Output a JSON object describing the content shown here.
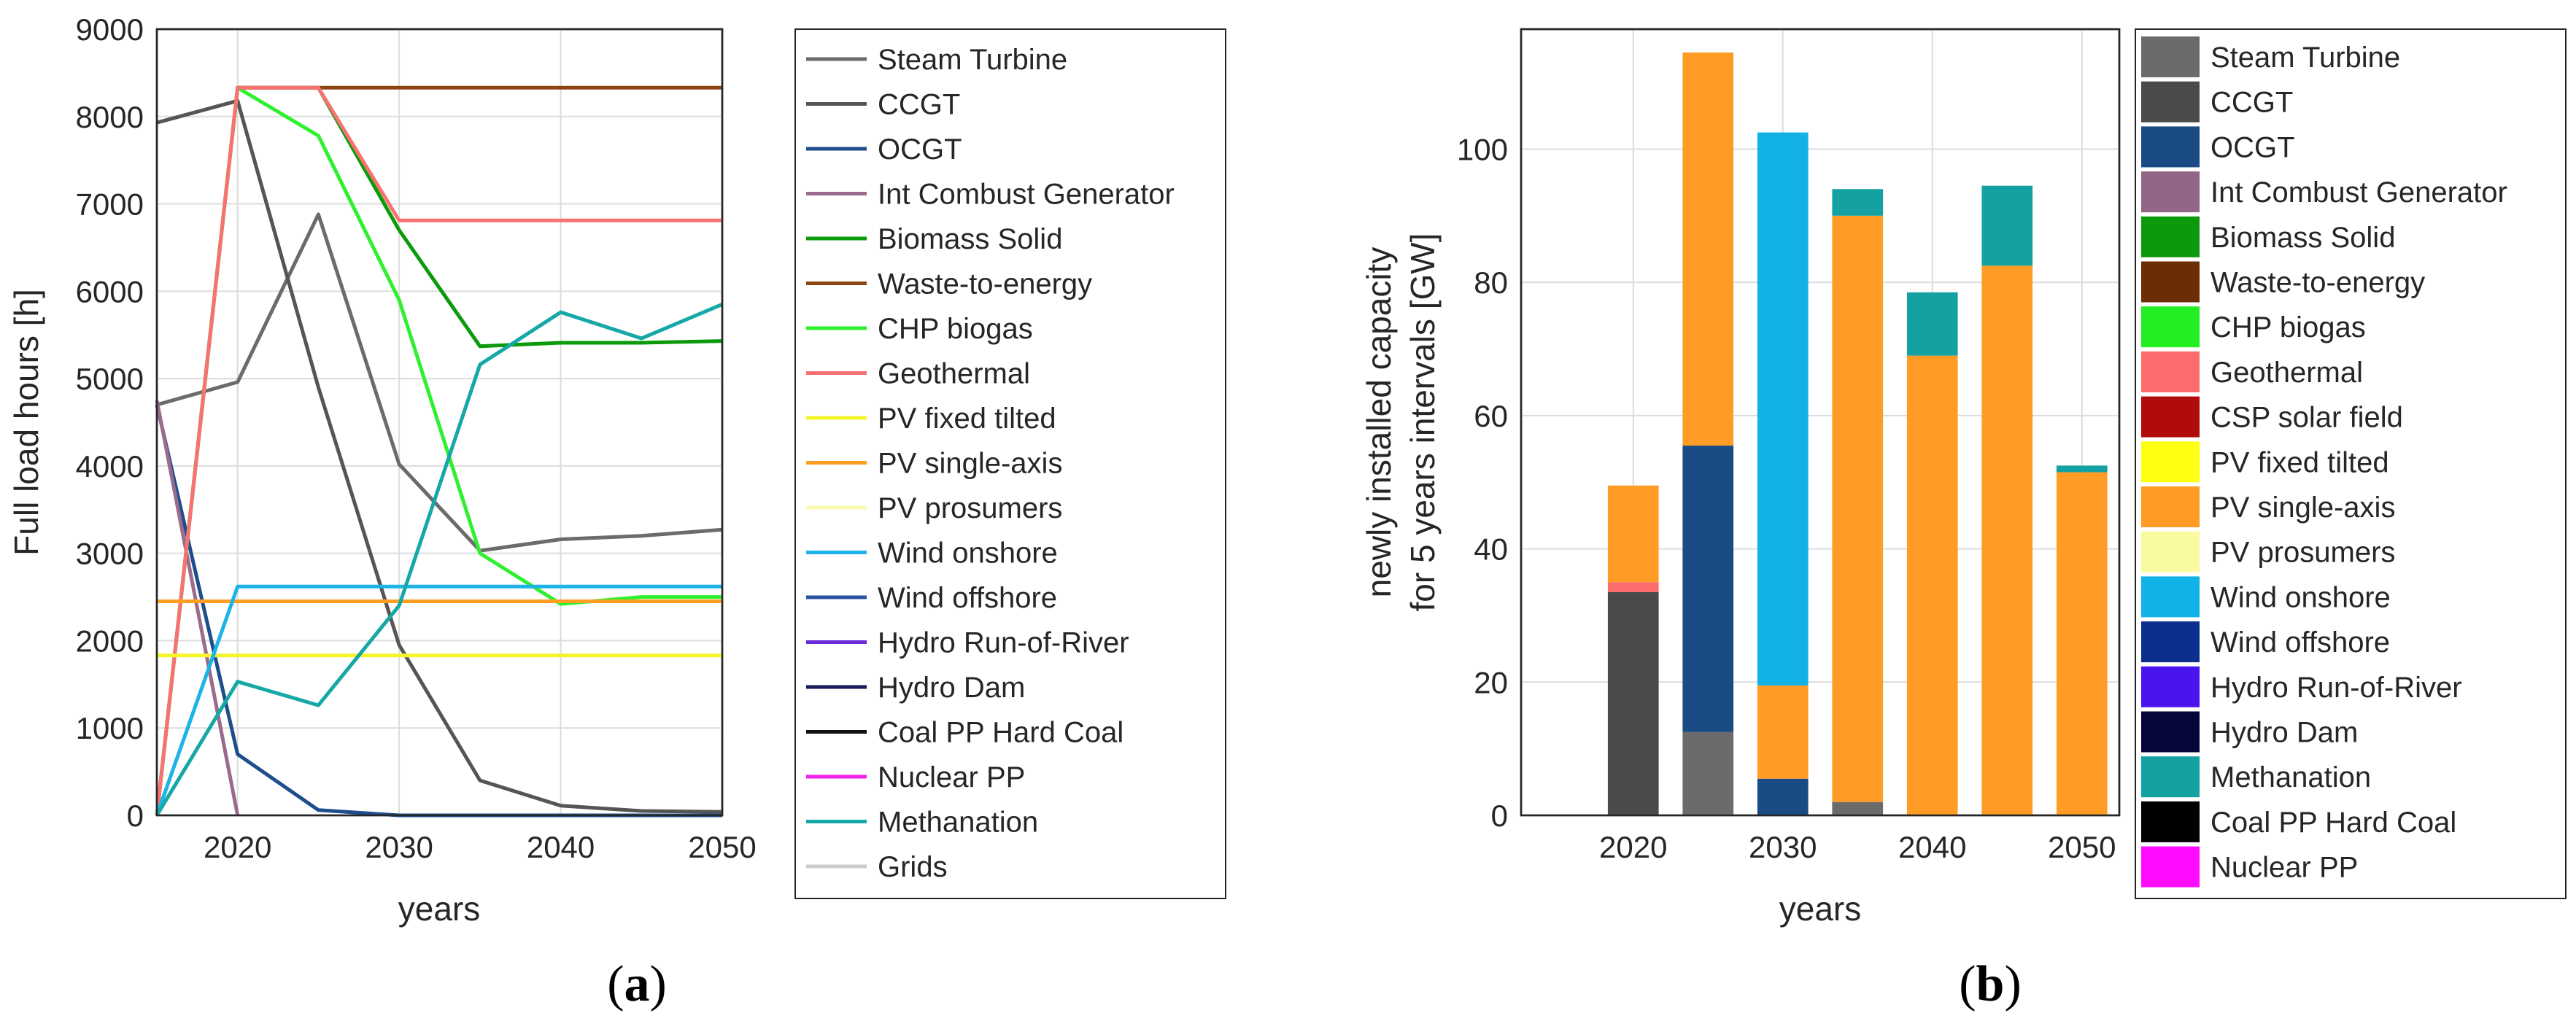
{
  "chart_data": [
    {
      "type": "line",
      "panel_label_prefix": "(",
      "panel_label_letter": "a",
      "panel_label_suffix": ")",
      "xlabel": "years",
      "ylabel": "Full load hours [h]",
      "xlim": [
        2015,
        2050
      ],
      "ylim": [
        0,
        9000
      ],
      "xticks": [
        2020,
        2030,
        2040,
        2050
      ],
      "yticks": [
        0,
        1000,
        2000,
        3000,
        4000,
        5000,
        6000,
        7000,
        8000,
        9000
      ],
      "x": [
        2015,
        2020,
        2025,
        2030,
        2035,
        2040,
        2045,
        2050
      ],
      "series": [
        {
          "name": "Steam Turbine",
          "color": "#6b6b6b",
          "values": [
            4700,
            4960,
            6880,
            4020,
            3030,
            3160,
            3200,
            3270
          ]
        },
        {
          "name": "CCGT",
          "color": "#555555",
          "values": [
            7930,
            8180,
            4900,
            1950,
            400,
            110,
            50,
            40
          ]
        },
        {
          "name": "OCGT",
          "color": "#1f4e8c",
          "values": [
            4700,
            700,
            60,
            0,
            0,
            0,
            0,
            0
          ]
        },
        {
          "name": "Int Combust Generator",
          "color": "#9b6b8b",
          "values": [
            4750,
            0,
            null,
            null,
            null,
            null,
            null,
            null
          ]
        },
        {
          "name": "Biomass Solid",
          "color": "#0a9a0a",
          "values": [
            0,
            8330,
            8330,
            6700,
            5370,
            5410,
            5410,
            5430
          ]
        },
        {
          "name": "Waste-to-energy",
          "color": "#8b4513",
          "values": [
            0,
            8330,
            8330,
            8330,
            8330,
            8330,
            8330,
            8330
          ]
        },
        {
          "name": "CHP biogas",
          "color": "#2ff02f",
          "values": [
            0,
            8330,
            7780,
            5900,
            3000,
            2420,
            2500,
            2500
          ]
        },
        {
          "name": "Geothermal",
          "color": "#f87272",
          "values": [
            0,
            8330,
            8330,
            6810,
            6810,
            6810,
            6810,
            6810
          ]
        },
        {
          "name": "PV fixed tilted",
          "color": "#f5f52a",
          "values": [
            1830,
            1830,
            1830,
            1830,
            1830,
            1830,
            1830,
            1830
          ]
        },
        {
          "name": "PV single-axis",
          "color": "#ffa024",
          "values": [
            2450,
            2450,
            2450,
            2450,
            2450,
            2450,
            2450,
            2450
          ]
        },
        {
          "name": "PV prosumers",
          "color": "#fafab4",
          "values": [
            null,
            null,
            null,
            null,
            null,
            null,
            null,
            null
          ]
        },
        {
          "name": "Wind onshore",
          "color": "#1cb4e6",
          "values": [
            0,
            2620,
            2620,
            2620,
            2620,
            2620,
            2620,
            2620
          ]
        },
        {
          "name": "Wind offshore",
          "color": "#2a52a0",
          "values": [
            null,
            null,
            null,
            null,
            null,
            null,
            null,
            null
          ]
        },
        {
          "name": "Hydro Run-of-River",
          "color": "#6a2ad8",
          "values": [
            null,
            null,
            null,
            null,
            null,
            null,
            null,
            null
          ]
        },
        {
          "name": "Hydro Dam",
          "color": "#1a1a5a",
          "values": [
            null,
            null,
            null,
            null,
            null,
            null,
            null,
            null
          ]
        },
        {
          "name": "Coal PP Hard Coal",
          "color": "#111111",
          "values": [
            null,
            null,
            null,
            null,
            null,
            null,
            null,
            null
          ]
        },
        {
          "name": "Nuclear PP",
          "color": "#ee22ee",
          "values": [
            null,
            null,
            null,
            null,
            null,
            null,
            null,
            null
          ]
        },
        {
          "name": "Methanation",
          "color": "#16a7a7",
          "values": [
            0,
            1530,
            1260,
            2400,
            5160,
            5760,
            5460,
            5850
          ]
        },
        {
          "name": "Grids",
          "color": "#cccccc",
          "values": [
            null,
            null,
            null,
            null,
            null,
            null,
            null,
            null
          ]
        }
      ]
    },
    {
      "type": "bar",
      "stacked": true,
      "panel_label_prefix": "(",
      "panel_label_letter": "b",
      "panel_label_suffix": ")",
      "xlabel": "years",
      "ylabel_lines": [
        "newly installed capacity",
        "for 5 years intervals [GW]"
      ],
      "xlim": [
        2012.5,
        2052.5
      ],
      "ylim": [
        0,
        118
      ],
      "xticks": [
        2020,
        2030,
        2040,
        2050
      ],
      "yticks": [
        0,
        20,
        40,
        60,
        80,
        100
      ],
      "categories": [
        2015,
        2020,
        2025,
        2030,
        2035,
        2040,
        2045,
        2050
      ],
      "series": [
        {
          "name": "Steam Turbine",
          "color": "#6b6b6b",
          "values": [
            0,
            0,
            12.5,
            0,
            2,
            0,
            0,
            0
          ]
        },
        {
          "name": "CCGT",
          "color": "#4a4a4a",
          "values": [
            0,
            33.5,
            0,
            0,
            0,
            0,
            0,
            0
          ]
        },
        {
          "name": "OCGT",
          "color": "#1b4b85",
          "values": [
            0,
            0,
            43,
            5.5,
            0,
            0,
            0,
            0
          ]
        },
        {
          "name": "Int Combust Generator",
          "color": "#946685",
          "values": [
            0,
            0,
            0,
            0,
            0,
            0,
            0,
            0
          ]
        },
        {
          "name": "Biomass Solid",
          "color": "#0c9a0c",
          "values": [
            0,
            0,
            0,
            0,
            0,
            0,
            0,
            0
          ]
        },
        {
          "name": "Waste-to-energy",
          "color": "#6b2d05",
          "values": [
            0,
            0,
            0,
            0,
            0,
            0,
            0,
            0
          ]
        },
        {
          "name": "CHP biogas",
          "color": "#22ee22",
          "values": [
            0,
            0,
            0,
            0,
            0,
            0,
            0,
            0
          ]
        },
        {
          "name": "Geothermal",
          "color": "#fc6c6c",
          "values": [
            0,
            1.5,
            0,
            0,
            0,
            0,
            0,
            0
          ]
        },
        {
          "name": "CSP solar field",
          "color": "#b10c0c",
          "values": [
            0,
            0,
            0,
            0,
            0,
            0,
            0,
            0
          ]
        },
        {
          "name": "PV fixed tilted",
          "color": "#ffff14",
          "values": [
            0,
            0,
            0,
            0,
            0,
            0,
            0,
            0
          ]
        },
        {
          "name": "PV single-axis",
          "color": "#ff9c26",
          "values": [
            0,
            14.5,
            59,
            14,
            88,
            69,
            82.5,
            51.5
          ]
        },
        {
          "name": "PV prosumers",
          "color": "#fafaa0",
          "values": [
            0,
            0,
            0,
            0,
            0,
            0,
            0,
            0
          ]
        },
        {
          "name": "Wind onshore",
          "color": "#12b2e8",
          "values": [
            0,
            0,
            0,
            83,
            0,
            0,
            0,
            0
          ]
        },
        {
          "name": "Wind offshore",
          "color": "#0c2e8c",
          "values": [
            0,
            0,
            0,
            0,
            0,
            0,
            0,
            0
          ]
        },
        {
          "name": "Hydro Run-of-River",
          "color": "#4a14ee",
          "values": [
            0,
            0,
            0,
            0,
            0,
            0,
            0,
            0
          ]
        },
        {
          "name": "Hydro Dam",
          "color": "#06063a",
          "values": [
            0,
            0,
            0,
            0,
            0,
            0,
            0,
            0
          ]
        },
        {
          "name": "Methanation",
          "color": "#14a1a1",
          "values": [
            0,
            0,
            0,
            0,
            4,
            9.5,
            12,
            1
          ]
        },
        {
          "name": "Coal PP Hard Coal",
          "color": "#000000",
          "values": [
            0,
            0,
            0,
            0,
            0,
            0,
            0,
            0
          ]
        },
        {
          "name": "Nuclear PP",
          "color": "#ff0cff",
          "values": [
            0,
            0,
            0,
            0,
            0,
            0,
            0,
            0
          ]
        }
      ]
    }
  ]
}
